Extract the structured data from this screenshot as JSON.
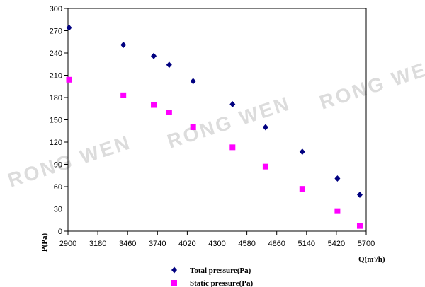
{
  "watermark": "RONG WEN",
  "chart_data": {
    "type": "scatter",
    "xlabel": "Q(m³/h)",
    "ylabel": "P(Pa)",
    "xlim": [
      2900,
      5700
    ],
    "ylim": [
      0,
      300
    ],
    "x_ticks": [
      2900,
      3180,
      3460,
      3740,
      4020,
      4300,
      4580,
      4860,
      5140,
      5420,
      5700
    ],
    "y_ticks": [
      0,
      30,
      60,
      90,
      120,
      150,
      180,
      210,
      240,
      270,
      300
    ],
    "grid": false,
    "legend_position": "bottom",
    "series": [
      {
        "name": "Total pressure(Pa)",
        "color": "#000080",
        "marker": "diamond",
        "fit_color": "#000000",
        "x": [
          2910,
          3420,
          3705,
          3850,
          4075,
          4445,
          4755,
          5100,
          5430,
          5640
        ],
        "y": [
          274,
          251,
          236,
          224,
          202,
          171,
          140,
          107,
          71,
          49
        ]
      },
      {
        "name": "Static pressure(Pa)",
        "color": "#ff00ff",
        "marker": "square",
        "fit_color": "#000000",
        "x": [
          2910,
          3420,
          3705,
          3850,
          4075,
          4445,
          4755,
          5100,
          5430,
          5640
        ],
        "y": [
          204,
          183,
          170,
          160,
          140,
          113,
          87,
          57,
          27,
          7
        ]
      }
    ]
  }
}
